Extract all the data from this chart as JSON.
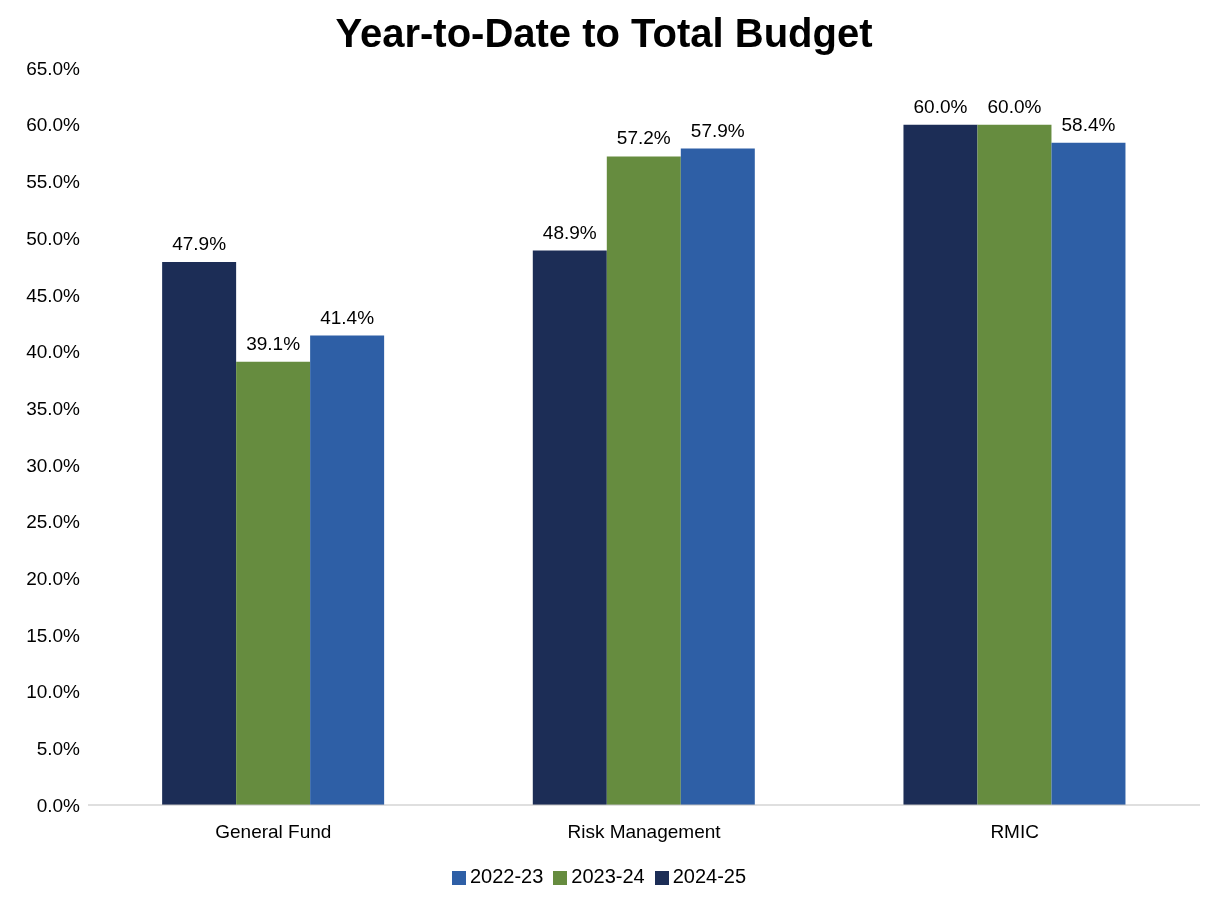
{
  "chart_data": {
    "type": "bar",
    "title": "Year-to-Date to Total Budget",
    "categories": [
      "General Fund",
      "Risk Management",
      "RMIC"
    ],
    "series": [
      {
        "name": "2024-25",
        "color": "#1c2d56",
        "values": [
          47.9,
          48.9,
          60.0
        ]
      },
      {
        "name": "2023-24",
        "color": "#668c3f",
        "values": [
          39.1,
          57.2,
          60.0
        ]
      },
      {
        "name": "2022-23",
        "color": "#2e5fa6",
        "values": [
          41.4,
          57.9,
          58.4
        ]
      }
    ],
    "value_labels": [
      [
        "47.9%",
        "48.9%",
        "60.0%"
      ],
      [
        "39.1%",
        "57.2%",
        "60.0%"
      ],
      [
        "41.4%",
        "57.9%",
        "58.4%"
      ]
    ],
    "ylim": [
      0,
      65
    ],
    "yticks": [
      {
        "value": 0,
        "label": "0.0%"
      },
      {
        "value": 5,
        "label": "5.0%"
      },
      {
        "value": 10,
        "label": "10.0%"
      },
      {
        "value": 15,
        "label": "15.0%"
      },
      {
        "value": 20,
        "label": "20.0%"
      },
      {
        "value": 25,
        "label": "25.0%"
      },
      {
        "value": 30,
        "label": "30.0%"
      },
      {
        "value": 35,
        "label": "35.0%"
      },
      {
        "value": 40,
        "label": "40.0%"
      },
      {
        "value": 45,
        "label": "45.0%"
      },
      {
        "value": 50,
        "label": "50.0%"
      },
      {
        "value": 55,
        "label": "55.0%"
      },
      {
        "value": 60,
        "label": "60.0%"
      },
      {
        "value": 65,
        "label": "65.0%"
      }
    ],
    "grid": false,
    "legend": "bottom"
  }
}
